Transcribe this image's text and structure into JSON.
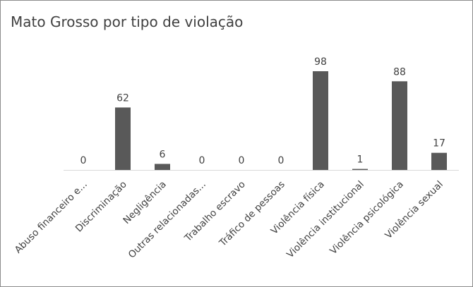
{
  "chart_data": {
    "type": "bar",
    "title": "Mato Grosso por tipo de violação",
    "categories": [
      "Abuso financeiro e...",
      "Discriminação",
      "Negligência",
      "Outras relacionadas...",
      "Trabalho escravo",
      "Tráfico de pessoas",
      "Violência física",
      "Violência institucional",
      "Violência psicológica",
      "Violência sexual"
    ],
    "values": [
      0,
      62,
      6,
      0,
      0,
      0,
      98,
      1,
      88,
      17
    ],
    "color": "#595959"
  }
}
